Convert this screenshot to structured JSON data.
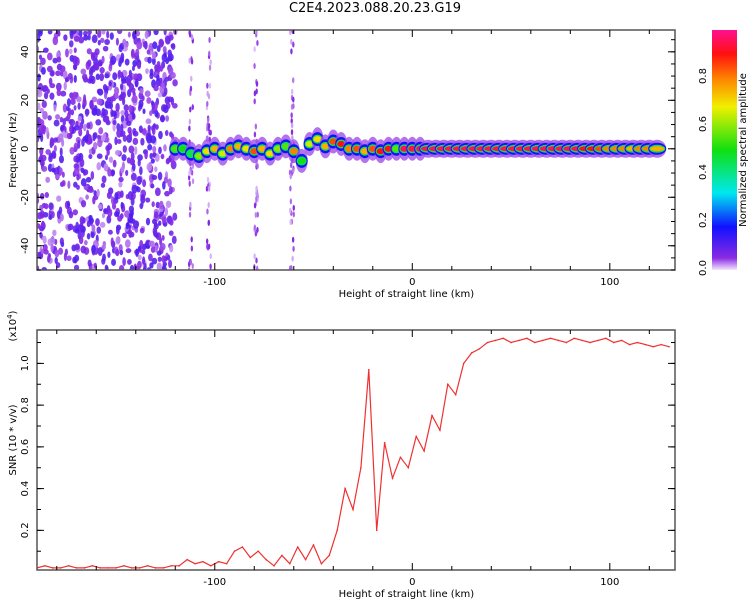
{
  "title": "C2E4.2023.088.20.23.G19",
  "chart_data": [
    {
      "type": "heatmap",
      "title": "C2E4.2023.088.20.23.G19",
      "xlabel": "Height of straight line (km)",
      "ylabel": "Frequency (Hz)",
      "xlim": [
        -190,
        133
      ],
      "ylim": [
        -50,
        49
      ],
      "xticks": [
        -100,
        0,
        100
      ],
      "yticks": [
        -40,
        -20,
        0,
        20,
        40
      ],
      "colorbar": {
        "label": "Normalized spectral amplitude",
        "range": [
          0,
          1
        ],
        "ticks": [
          "0.0",
          "0.2",
          "0.4",
          "0.6",
          "0.8"
        ]
      },
      "noise_region_x": [
        -190,
        -120
      ],
      "noise_streaks_x": [
        -112,
        -103,
        -79,
        -61
      ],
      "band": {
        "frequency_hz": 0,
        "x_start": -120,
        "x_step": 4,
        "peak_amplitude": [
          0.55,
          0.5,
          0.45,
          0.6,
          0.7,
          0.75,
          0.65,
          0.8,
          0.75,
          0.7,
          0.85,
          0.75,
          0.7,
          0.6,
          0.55,
          0.8,
          0.5,
          0.65,
          0.7,
          0.75,
          0.85,
          0.9,
          0.8,
          0.85,
          0.75,
          0.85,
          0.9,
          0.9,
          0.55,
          0.95,
          0.95,
          0.95,
          0.95,
          0.95,
          0.95,
          0.95,
          0.95,
          0.95,
          0.95,
          0.95,
          0.95,
          0.95,
          0.95,
          0.95,
          0.95,
          0.95,
          0.95,
          0.95,
          0.95,
          0.95,
          0.95,
          0.95,
          0.9,
          0.9,
          0.85,
          0.8,
          0.8,
          0.8,
          0.75,
          0.8,
          0.8,
          0.75
        ],
        "frequency_offset_hz": [
          0,
          0,
          -2,
          -3,
          -1,
          0,
          -2,
          0,
          1,
          0,
          -1,
          0,
          -2,
          0,
          1,
          -1,
          -5,
          2,
          4,
          1,
          3,
          2,
          0,
          0,
          -1,
          0,
          -1,
          0,
          0,
          0,
          0,
          0,
          0,
          0,
          0,
          0,
          0,
          0,
          0,
          0,
          0,
          0,
          0,
          0,
          0,
          0,
          0,
          0,
          0,
          0,
          0,
          0,
          0,
          0,
          0,
          0,
          0,
          0,
          0,
          0,
          0,
          0
        ]
      }
    },
    {
      "type": "line",
      "xlabel": "Height of straight line (km)",
      "ylabel": "SNR (10 * v/v)",
      "y_multiplier": "(x10",
      "y_multiplier_exp": "4",
      "y_multiplier_close": ")",
      "xlim": [
        -190,
        133
      ],
      "ylim": [
        0.01,
        1.16
      ],
      "xticks": [
        -100,
        0,
        100
      ],
      "yticks": [
        "0.2",
        "0.4",
        "0.6",
        "0.8",
        "1.0"
      ],
      "color": "#f03030",
      "x_start": -190,
      "x_step": 4,
      "values": [
        0.02,
        0.03,
        0.02,
        0.02,
        0.03,
        0.02,
        0.02,
        0.03,
        0.02,
        0.02,
        0.02,
        0.03,
        0.02,
        0.02,
        0.03,
        0.02,
        0.02,
        0.03,
        0.03,
        0.06,
        0.04,
        0.05,
        0.03,
        0.05,
        0.04,
        0.1,
        0.12,
        0.07,
        0.1,
        0.06,
        0.03,
        0.08,
        0.04,
        0.12,
        0.06,
        0.13,
        0.04,
        0.08,
        0.2,
        0.4,
        0.3,
        0.5,
        0.97,
        0.2,
        0.62,
        0.45,
        0.55,
        0.5,
        0.65,
        0.58,
        0.75,
        0.68,
        0.9,
        0.85,
        1.0,
        1.05,
        1.07,
        1.1,
        1.11,
        1.12,
        1.1,
        1.11,
        1.12,
        1.1,
        1.11,
        1.12,
        1.11,
        1.1,
        1.12,
        1.11,
        1.1,
        1.11,
        1.12,
        1.1,
        1.11,
        1.09,
        1.1,
        1.09,
        1.08,
        1.09,
        1.08
      ]
    }
  ]
}
